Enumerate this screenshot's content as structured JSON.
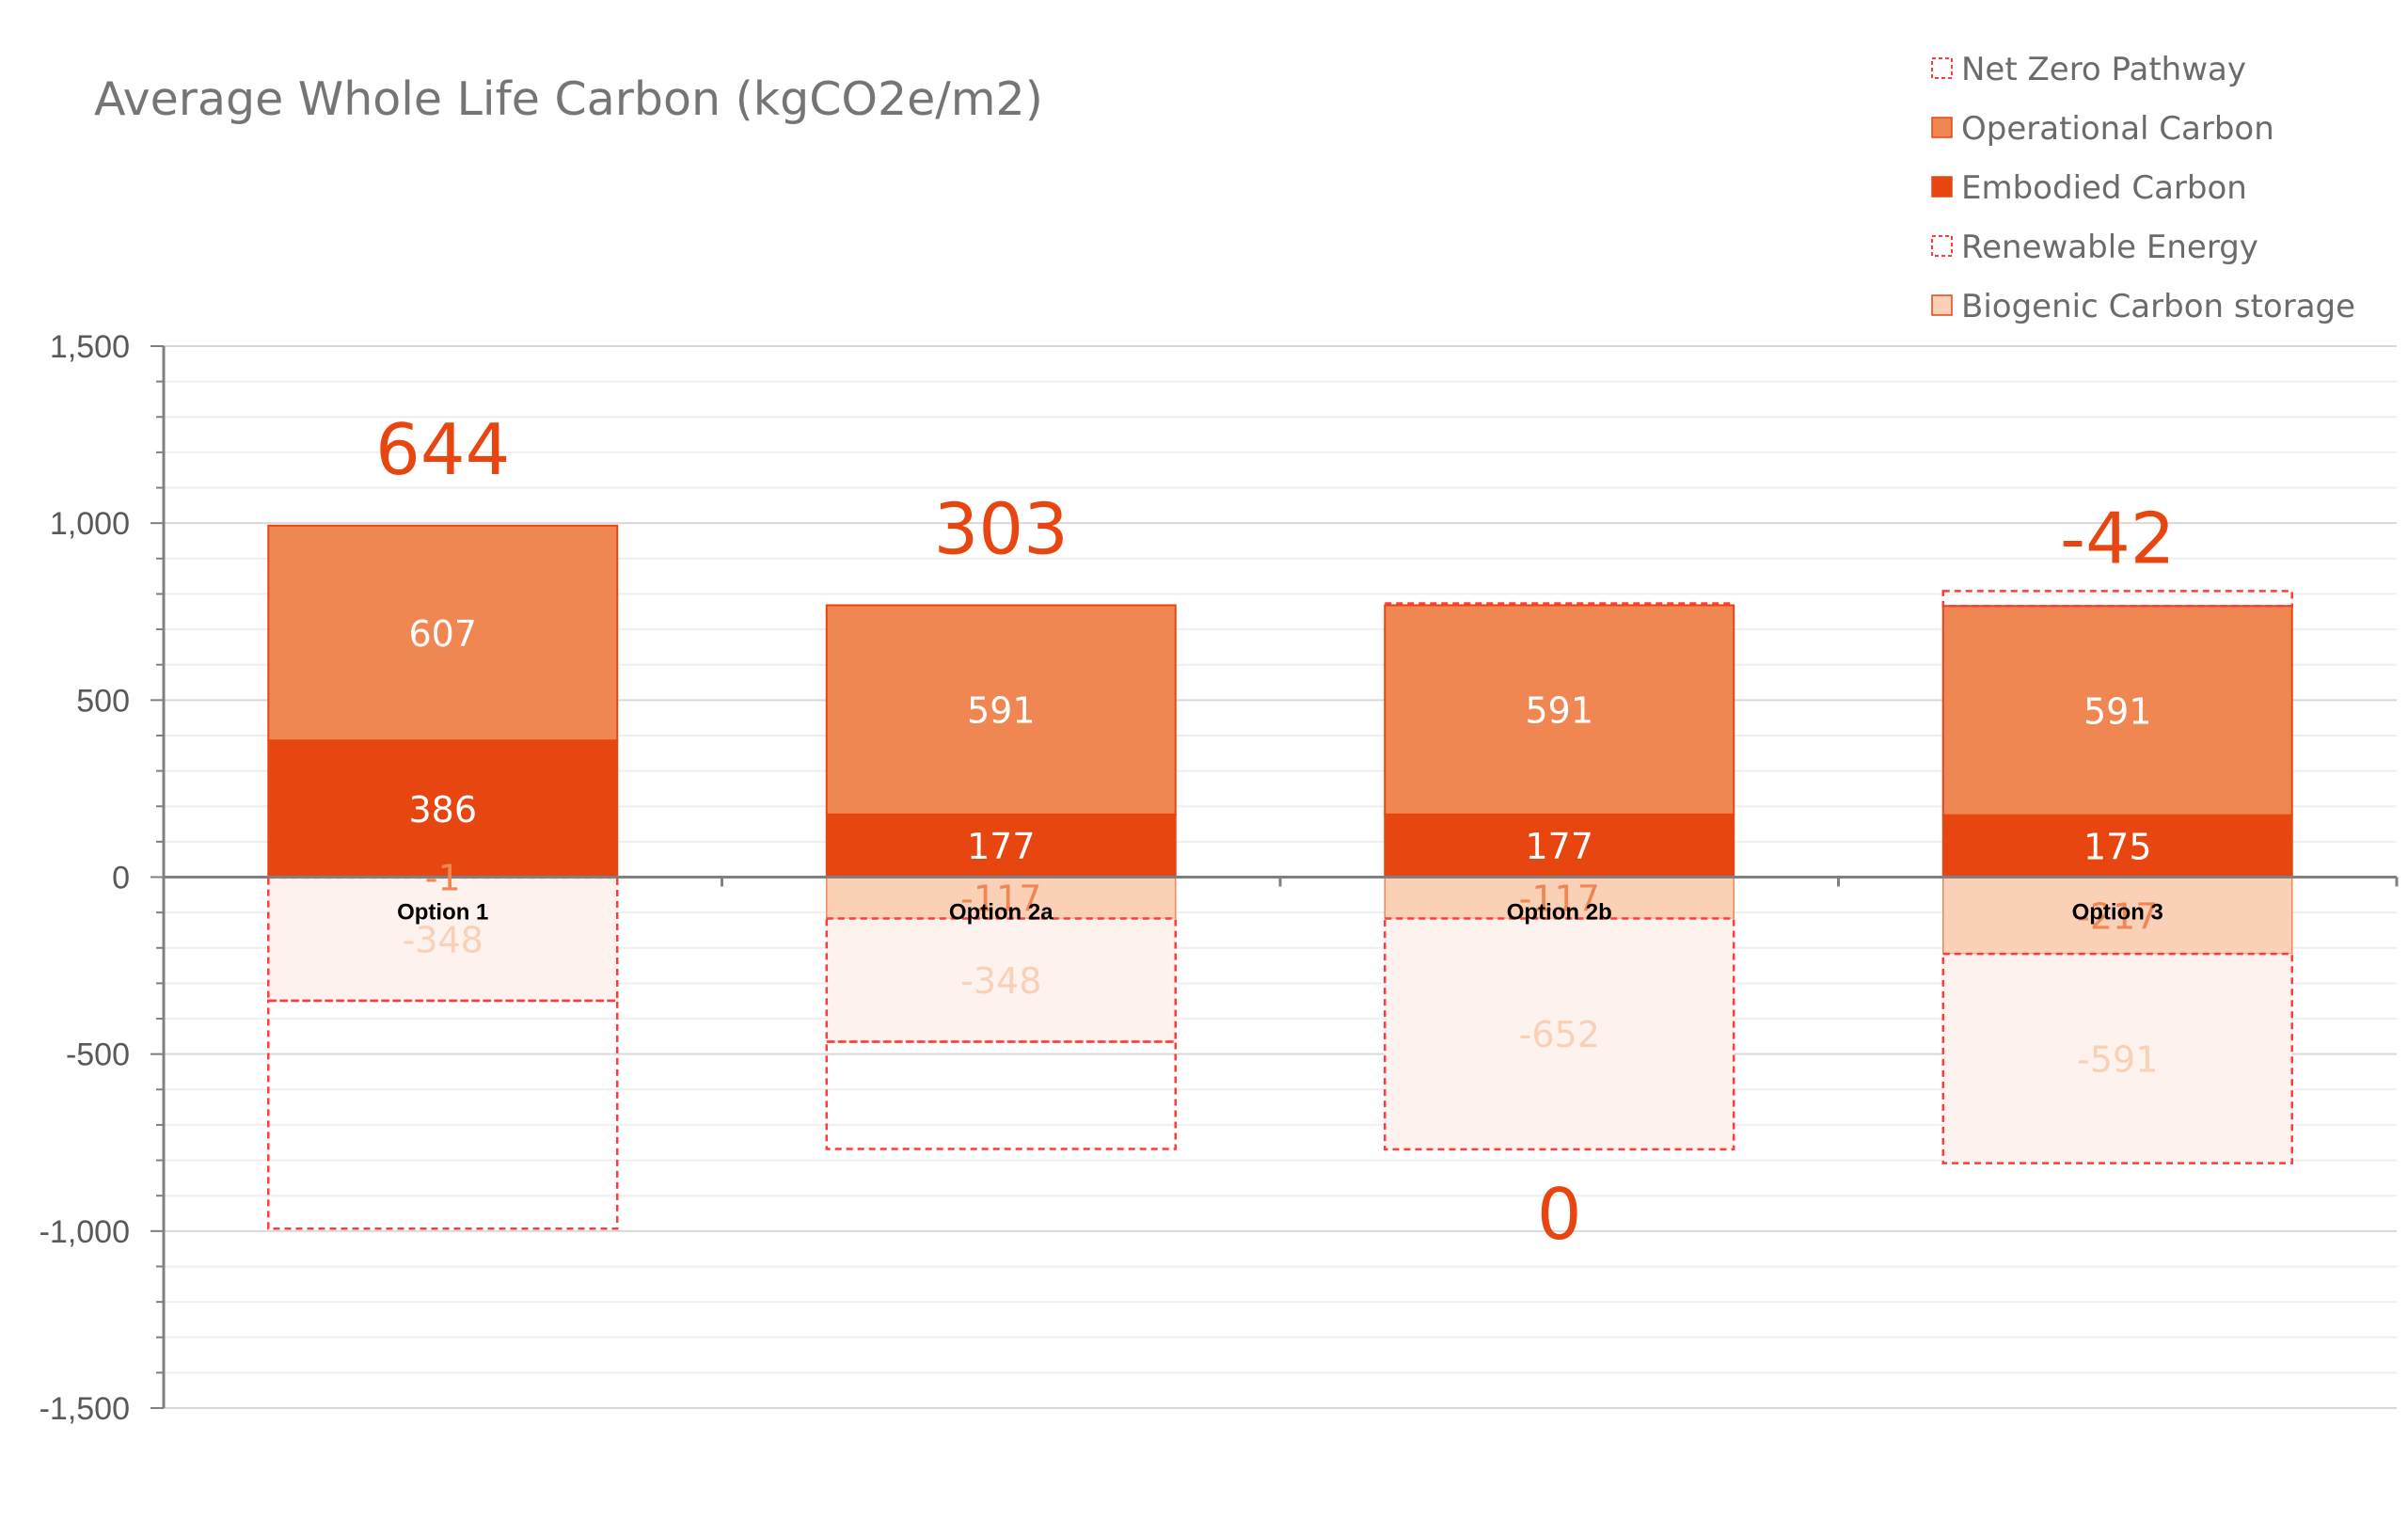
{
  "chart_data": {
    "type": "bar",
    "title": "Average Whole Life Carbon (kgCO2e/m2)",
    "xlabel": "",
    "ylabel": "",
    "ylim": [
      -1500,
      1500
    ],
    "y_ticks": [
      1500,
      1000,
      500,
      0,
      -500,
      -1000,
      -1500
    ],
    "y_tick_labels": [
      "1,500",
      "1,000",
      "500",
      "0",
      "-500",
      "-1,000",
      "-1,500"
    ],
    "grid": true,
    "legend_position": "top-right",
    "categories": [
      "Option 1",
      "Option 2a",
      "Option 2b",
      "Option 3"
    ],
    "series": [
      {
        "name": "Embodied Carbon",
        "values": [
          386,
          177,
          177,
          175
        ],
        "labels": [
          "386",
          "177",
          "177",
          "175"
        ],
        "color": "#e84610",
        "style": "solid"
      },
      {
        "name": "Operational Carbon",
        "values": [
          607,
          591,
          591,
          591
        ],
        "labels": [
          "607",
          "591",
          "591",
          "591"
        ],
        "color": "#f08753",
        "style": "solid"
      },
      {
        "name": "Biogenic Carbon storage",
        "values": [
          -1,
          -117,
          -117,
          -217
        ],
        "labels": [
          "-1",
          "-117",
          "-117",
          "-217"
        ],
        "color": "#fad0b7",
        "style": "solid"
      },
      {
        "name": "Renewable Energy",
        "values": [
          -348,
          -348,
          -652,
          -591
        ],
        "labels": [
          "-348",
          "-348",
          "-652",
          "-591"
        ],
        "color": "#fdf2ee",
        "style": "dashed"
      },
      {
        "name": "Net Zero Pathway",
        "values": [
          -644,
          -303,
          0,
          42
        ],
        "labels": [],
        "color": "#ff3b3b",
        "style": "dashed"
      }
    ],
    "totals": [
      644,
      303,
      0,
      -42
    ],
    "total_labels": [
      "644",
      "303",
      "0",
      "-42"
    ],
    "colors": {
      "label_dark": "#ffffff",
      "label_light": "#fad0b7",
      "label_biogenic": "#f08753",
      "total": "#e84610",
      "axis": "#808080",
      "grid": "#d9d9d9",
      "minor_grid": "#efefef"
    }
  }
}
